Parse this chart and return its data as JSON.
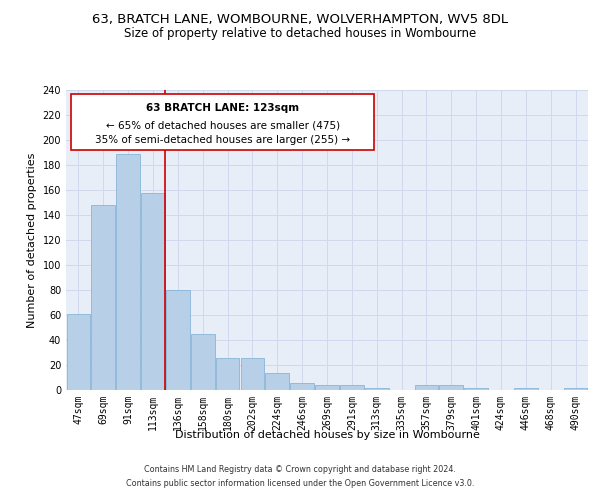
{
  "title": "63, BRATCH LANE, WOMBOURNE, WOLVERHAMPTON, WV5 8DL",
  "subtitle": "Size of property relative to detached houses in Wombourne",
  "xlabel": "Distribution of detached houses by size in Wombourne",
  "ylabel": "Number of detached properties",
  "footer1": "Contains HM Land Registry data © Crown copyright and database right 2024.",
  "footer2": "Contains public sector information licensed under the Open Government Licence v3.0.",
  "bar_color": "#b8cfe8",
  "bar_edge_color": "#7aadd4",
  "background_color": "#e8eef8",
  "categories": [
    "47sqm",
    "69sqm",
    "91sqm",
    "113sqm",
    "136sqm",
    "158sqm",
    "180sqm",
    "202sqm",
    "224sqm",
    "246sqm",
    "269sqm",
    "291sqm",
    "313sqm",
    "335sqm",
    "357sqm",
    "379sqm",
    "401sqm",
    "424sqm",
    "446sqm",
    "468sqm",
    "490sqm"
  ],
  "values": [
    61,
    148,
    189,
    158,
    80,
    45,
    26,
    26,
    14,
    6,
    4,
    4,
    2,
    0,
    4,
    4,
    2,
    0,
    2,
    0,
    2
  ],
  "red_line_x": 3.5,
  "annotation_text_line1": "63 BRATCH LANE: 123sqm",
  "annotation_text_line2": "← 65% of detached houses are smaller (475)",
  "annotation_text_line3": "35% of semi-detached houses are larger (255) →",
  "annotation_box_color": "#cc0000",
  "ylim": [
    0,
    240
  ],
  "yticks": [
    0,
    20,
    40,
    60,
    80,
    100,
    120,
    140,
    160,
    180,
    200,
    220,
    240
  ],
  "grid_color": "#d0d8ee",
  "title_fontsize": 9.5,
  "subtitle_fontsize": 8.5,
  "axis_label_fontsize": 8,
  "tick_fontsize": 7,
  "annotation_fontsize": 7.5,
  "footer_fontsize": 5.8
}
